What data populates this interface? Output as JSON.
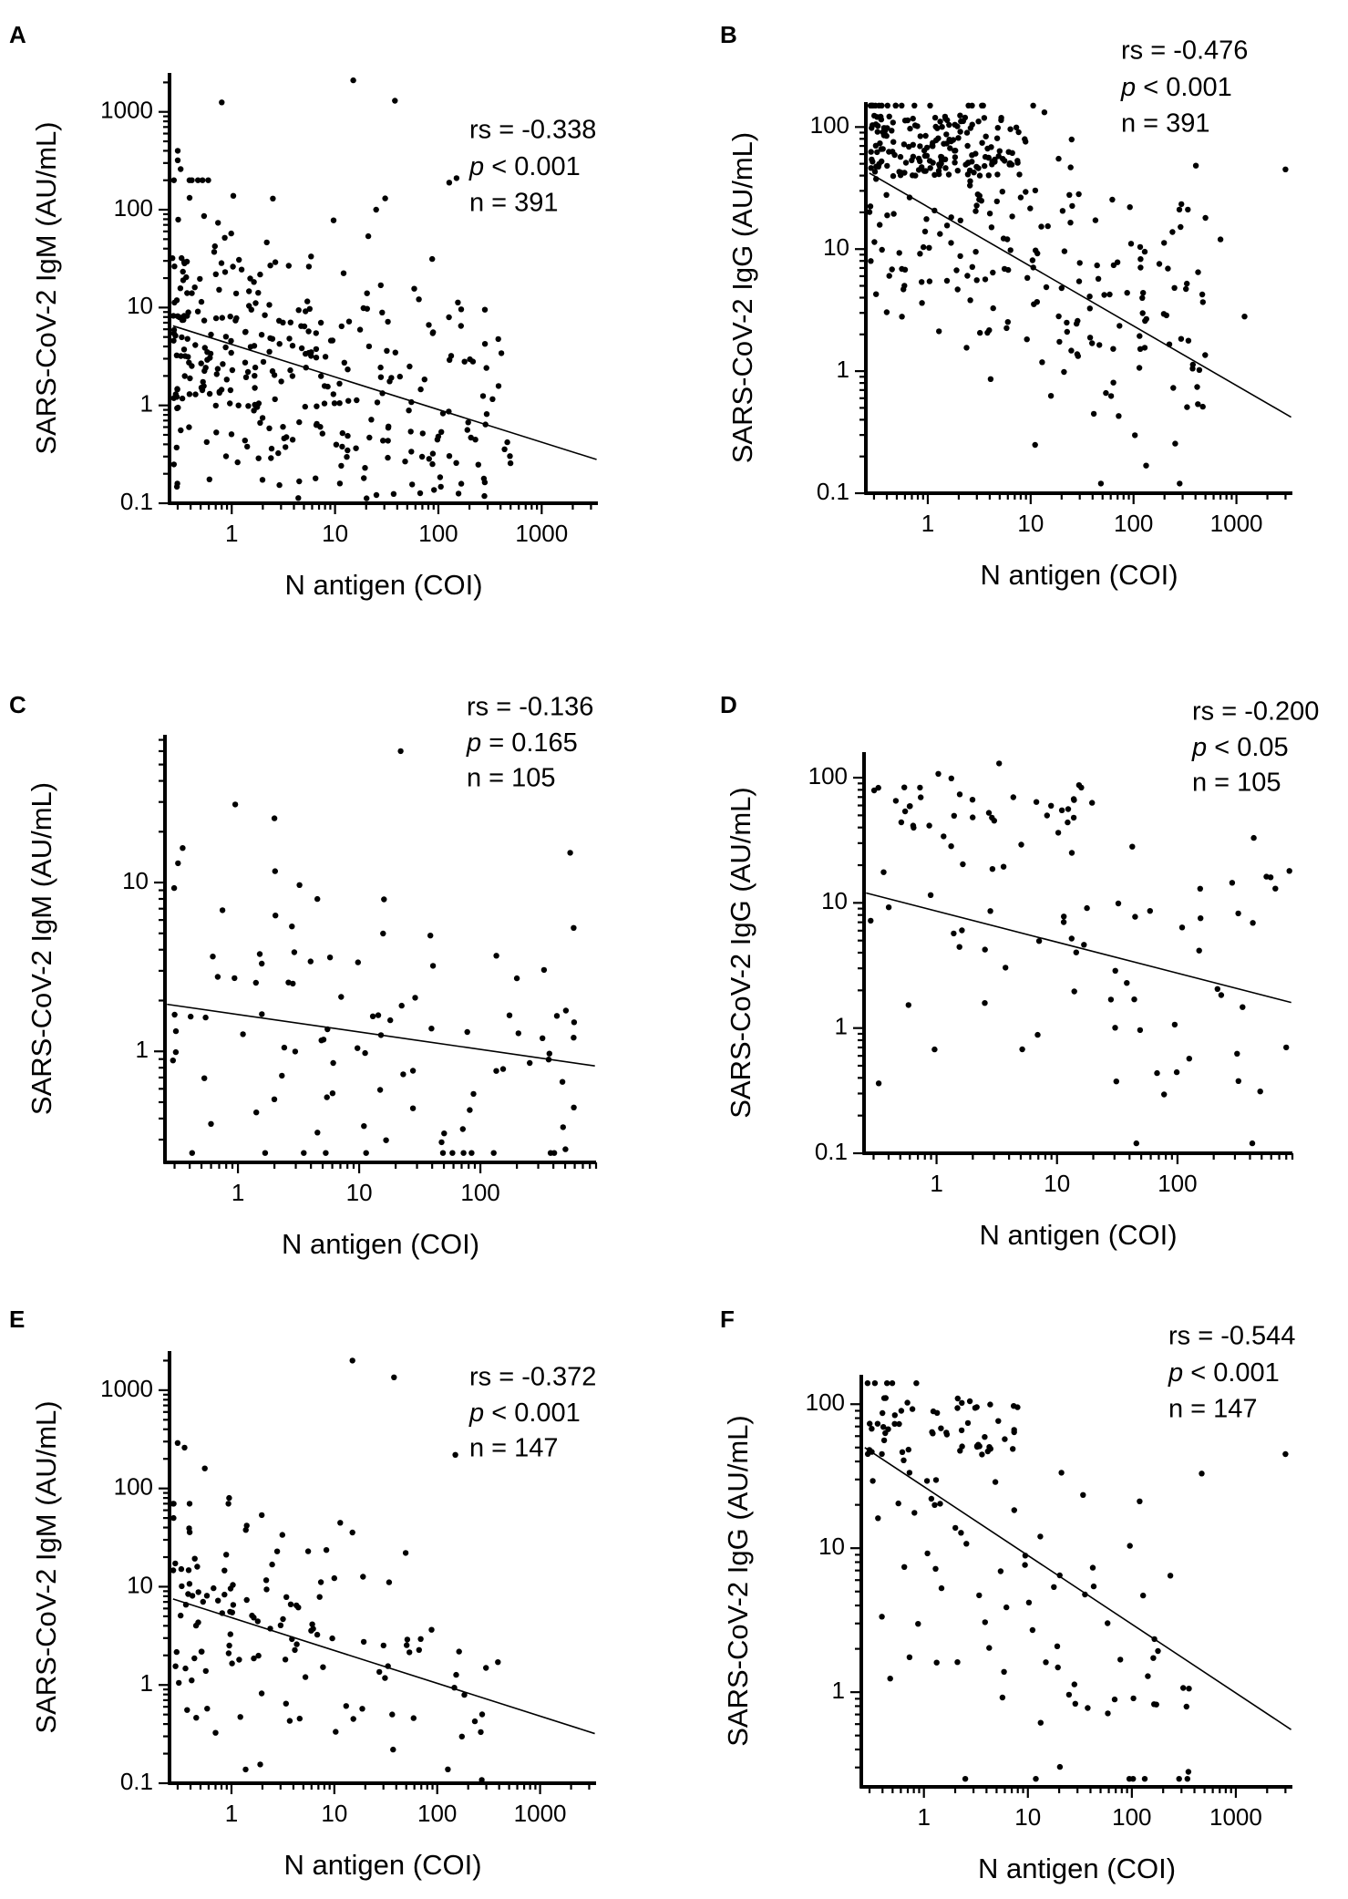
{
  "figure": {
    "aria_label": "Six scatter plots of SARS-CoV-2 IgM and IgG versus N antigen"
  },
  "chart_data": [
    {
      "id": "A",
      "type": "scatter",
      "panel_label": "A",
      "xlabel": "N antigen (COI)",
      "ylabel": "SARS-CoV-2 IgM (AU/mL)",
      "x_scale": "log",
      "y_scale": "log",
      "xlim": [
        0.25,
        3500
      ],
      "ylim": [
        0.1,
        2500
      ],
      "xticks": [
        1,
        10,
        100,
        1000
      ],
      "xtick_labels": [
        "1",
        "10",
        "100",
        "1000"
      ],
      "yticks": [
        0.1,
        1,
        10,
        100,
        1000
      ],
      "ytick_labels": [
        "0.1",
        "1",
        "10",
        "100",
        "1000"
      ],
      "stats": {
        "rs_text": "rs = -0.338",
        "p_symbol": "p",
        "p_rest": " < 0.001",
        "n_text": "n = 391"
      },
      "n_points": 391,
      "seed": 11,
      "fit_line": {
        "x": [
          0.27,
          3400
        ],
        "y": [
          6.5,
          0.28
        ]
      },
      "notable_points": [
        {
          "x": 15,
          "y": 2100
        },
        {
          "x": 0.8,
          "y": 1250
        },
        {
          "x": 38,
          "y": 1300
        },
        {
          "x": 150,
          "y": 210
        },
        {
          "x": 0.3,
          "y": 400
        },
        {
          "x": 0.3,
          "y": 320
        },
        {
          "x": 0.32,
          "y": 260
        },
        {
          "x": 25,
          "y": 100
        },
        {
          "x": 2.5,
          "y": 130
        }
      ],
      "sim": {
        "slope": -0.41,
        "intercept": 0.55,
        "sd": 0.75,
        "xmin_log": -0.6,
        "xmax_log": 2.7,
        "skew": 1.6,
        "ymin": 0.1,
        "ymax": 200
      }
    },
    {
      "id": "B",
      "type": "scatter",
      "panel_label": "B",
      "xlabel": "N antigen (COI)",
      "ylabel": "SARS-CoV-2 IgG (AU/mL)",
      "x_scale": "log",
      "y_scale": "log",
      "xlim": [
        0.25,
        3500
      ],
      "ylim": [
        0.1,
        160
      ],
      "xticks": [
        1,
        10,
        100,
        1000
      ],
      "xtick_labels": [
        "1",
        "10",
        "100",
        "1000"
      ],
      "yticks": [
        0.1,
        1,
        10,
        100
      ],
      "ytick_labels": [
        "0.1",
        "1",
        "10",
        "100"
      ],
      "stats": {
        "rs_text": "rs = -0.476",
        "p_symbol": "p",
        "p_rest": " < 0.001",
        "n_text": "n = 391"
      },
      "n_points": 391,
      "seed": 23,
      "fit_line": {
        "x": [
          0.27,
          3400
        ],
        "y": [
          42,
          0.42
        ]
      },
      "notable_points": [
        {
          "x": 3000,
          "y": 45
        },
        {
          "x": 1200,
          "y": 2.8
        },
        {
          "x": 700,
          "y": 12
        },
        {
          "x": 500,
          "y": 18
        }
      ],
      "sim": {
        "slope": -0.5,
        "intercept": 1.35,
        "sd": 0.6,
        "xmin_log": -0.6,
        "xmax_log": 2.7,
        "skew": 1.3,
        "ymin": 0.12,
        "ymax": 150,
        "cluster": {
          "n": 150,
          "xmin_log": -0.6,
          "xmax_log": 0.9,
          "ymin_log": 1.6,
          "ymax_log": 2.1
        }
      }
    },
    {
      "id": "C",
      "type": "scatter",
      "panel_label": "C",
      "xlabel": "N antigen (COI)",
      "ylabel": "SARS-CoV-2 IgM (AU/mL)",
      "x_scale": "log",
      "y_scale": "log",
      "xlim": [
        0.25,
        900
      ],
      "ylim": [
        0.22,
        75
      ],
      "xticks": [
        1,
        10,
        100
      ],
      "xtick_labels": [
        "1",
        "10",
        "100"
      ],
      "yticks": [
        1,
        10
      ],
      "ytick_labels": [
        "1",
        "10"
      ],
      "stats": {
        "rs_text": "rs = -0.136",
        "p_symbol": "p",
        "p_rest": " = 0.165",
        "n_text": "n = 105"
      },
      "n_points": 105,
      "seed": 37,
      "fit_line": {
        "x": [
          0.26,
          880
        ],
        "y": [
          1.9,
          0.82
        ]
      },
      "notable_points": [
        {
          "x": 22,
          "y": 60
        },
        {
          "x": 0.95,
          "y": 29
        },
        {
          "x": 2,
          "y": 24
        },
        {
          "x": 550,
          "y": 15
        },
        {
          "x": 0.35,
          "y": 16
        },
        {
          "x": 0.32,
          "y": 13
        }
      ],
      "sim": {
        "slope": -0.12,
        "intercept": 0.2,
        "sd": 0.5,
        "xmin_log": -0.55,
        "xmax_log": 2.8,
        "skew": 1.0,
        "ymin": 0.25,
        "ymax": 30
      }
    },
    {
      "id": "D",
      "type": "scatter",
      "panel_label": "D",
      "xlabel": "N antigen (COI)",
      "ylabel": "SARS-CoV-2 IgG (AU/mL)",
      "x_scale": "log",
      "y_scale": "log",
      "xlim": [
        0.25,
        900
      ],
      "ylim": [
        0.1,
        160
      ],
      "xticks": [
        1,
        10,
        100
      ],
      "xtick_labels": [
        "1",
        "10",
        "100"
      ],
      "yticks": [
        0.1,
        1,
        10,
        100
      ],
      "ytick_labels": [
        "0.1",
        "1",
        "10",
        "100"
      ],
      "stats": {
        "rs_text": "rs = -0.200",
        "p_symbol": "p",
        "p_rest": " < 0.05",
        "n_text": "n = 105"
      },
      "n_points": 105,
      "seed": 41,
      "fit_line": {
        "x": [
          0.26,
          880
        ],
        "y": [
          12,
          1.6
        ]
      },
      "notable_points": [
        {
          "x": 850,
          "y": 18
        },
        {
          "x": 650,
          "y": 13
        },
        {
          "x": 430,
          "y": 33
        },
        {
          "x": 800,
          "y": 0.7
        }
      ],
      "sim": {
        "slope": -0.25,
        "intercept": 0.9,
        "sd": 0.65,
        "xmin_log": -0.55,
        "xmax_log": 2.8,
        "skew": 1.0,
        "ymin": 0.12,
        "ymax": 130,
        "cluster": {
          "n": 30,
          "xmin_log": -0.55,
          "xmax_log": 1.5,
          "ymin_log": 1.6,
          "ymax_log": 2.05
        }
      }
    },
    {
      "id": "E",
      "type": "scatter",
      "panel_label": "E",
      "xlabel": "N antigen (COI)",
      "ylabel": "SARS-CoV-2 IgM (AU/mL)",
      "x_scale": "log",
      "y_scale": "log",
      "xlim": [
        0.25,
        3500
      ],
      "ylim": [
        0.1,
        2500
      ],
      "xticks": [
        1,
        10,
        100,
        1000
      ],
      "xtick_labels": [
        "1",
        "10",
        "100",
        "1000"
      ],
      "yticks": [
        0.1,
        1,
        10,
        100,
        1000
      ],
      "ytick_labels": [
        "0.1",
        "1",
        "10",
        "100",
        "1000"
      ],
      "stats": {
        "rs_text": "rs = -0.372",
        "p_symbol": "p",
        "p_rest": " < 0.001",
        "n_text": "n = 147"
      },
      "n_points": 147,
      "seed": 53,
      "fit_line": {
        "x": [
          0.27,
          3400
        ],
        "y": [
          7.5,
          0.32
        ]
      },
      "notable_points": [
        {
          "x": 15,
          "y": 2000
        },
        {
          "x": 38,
          "y": 1350
        },
        {
          "x": 150,
          "y": 220
        },
        {
          "x": 0.3,
          "y": 290
        },
        {
          "x": 0.35,
          "y": 260
        },
        {
          "x": 0.55,
          "y": 160
        },
        {
          "x": 0.95,
          "y": 80
        }
      ],
      "sim": {
        "slope": -0.42,
        "intercept": 0.6,
        "sd": 0.7,
        "xmin_log": -0.6,
        "xmax_log": 2.7,
        "skew": 1.5,
        "ymin": 0.1,
        "ymax": 70
      }
    },
    {
      "id": "F",
      "type": "scatter",
      "panel_label": "F",
      "xlabel": "N antigen (COI)",
      "ylabel": "SARS-CoV-2 IgG (AU/mL)",
      "x_scale": "log",
      "y_scale": "log",
      "xlim": [
        0.25,
        3500
      ],
      "ylim": [
        0.22,
        160
      ],
      "xticks": [
        1,
        10,
        100,
        1000
      ],
      "xtick_labels": [
        "1",
        "10",
        "100",
        "1000"
      ],
      "yticks": [
        1,
        10,
        100
      ],
      "ytick_labels": [
        "1",
        "10",
        "100"
      ],
      "stats": {
        "rs_text": "rs = -0.544",
        "p_symbol": "p",
        "p_rest": " < 0.001",
        "n_text": "n = 147"
      },
      "n_points": 147,
      "seed": 67,
      "fit_line": {
        "x": [
          0.27,
          3400
        ],
        "y": [
          50,
          0.55
        ]
      },
      "notable_points": [
        {
          "x": 3000,
          "y": 45
        },
        {
          "x": 470,
          "y": 33
        },
        {
          "x": 350,
          "y": 0.28
        },
        {
          "x": 2.5,
          "y": 0.25
        }
      ],
      "sim": {
        "slope": -0.55,
        "intercept": 1.4,
        "sd": 0.55,
        "xmin_log": -0.6,
        "xmax_log": 2.6,
        "skew": 1.3,
        "ymin": 0.25,
        "ymax": 140,
        "cluster": {
          "n": 55,
          "xmin_log": -0.6,
          "xmax_log": 0.9,
          "ymin_log": 1.65,
          "ymax_log": 2.05
        }
      }
    }
  ]
}
